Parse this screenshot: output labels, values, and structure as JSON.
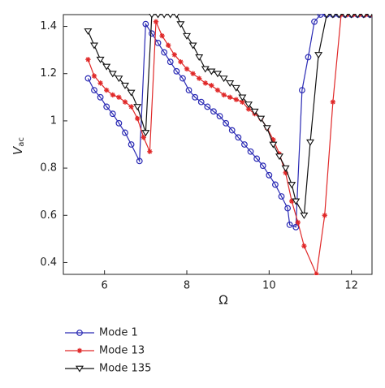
{
  "chart_data": {
    "type": "line",
    "xlabel": "Ω",
    "ylabel": "V",
    "ylabel_sub": "ac",
    "xlim": [
      5,
      12.5
    ],
    "ylim": [
      0.35,
      1.45
    ],
    "xticks": [
      6,
      8,
      10,
      12
    ],
    "yticks": [
      0.4,
      0.6,
      0.8,
      1,
      1.2,
      1.4
    ],
    "grid": false,
    "legend": "below",
    "series": [
      {
        "name": "Mode 1",
        "color": "#2a2ab4",
        "marker": "circle",
        "x": [
          5.6,
          5.75,
          5.9,
          6.05,
          6.2,
          6.35,
          6.5,
          6.65,
          6.85,
          7.0,
          7.15,
          7.3,
          7.45,
          7.6,
          7.75,
          7.9,
          8.05,
          8.2,
          8.35,
          8.5,
          8.65,
          8.8,
          8.95,
          9.1,
          9.25,
          9.4,
          9.55,
          9.7,
          9.85,
          10.0,
          10.15,
          10.3,
          10.45,
          10.5,
          10.65,
          10.8,
          10.95,
          11.1,
          11.25,
          11.4,
          11.55,
          11.7,
          11.85,
          12.0,
          12.15,
          12.3,
          12.45
        ],
        "values": [
          1.18,
          1.13,
          1.1,
          1.06,
          1.03,
          0.99,
          0.95,
          0.9,
          0.83,
          1.41,
          1.37,
          1.33,
          1.29,
          1.25,
          1.21,
          1.18,
          1.13,
          1.1,
          1.08,
          1.06,
          1.04,
          1.02,
          0.99,
          0.96,
          0.93,
          0.9,
          0.87,
          0.84,
          0.81,
          0.77,
          0.73,
          0.68,
          0.63,
          0.56,
          0.55,
          1.13,
          1.27,
          1.42,
          1.45,
          1.45,
          1.45,
          1.45,
          1.45,
          1.45,
          1.45,
          1.45,
          1.45
        ]
      },
      {
        "name": "Mode 13",
        "color": "#e02828",
        "marker": "star",
        "x": [
          5.6,
          5.75,
          5.9,
          6.05,
          6.2,
          6.35,
          6.5,
          6.65,
          6.8,
          6.95,
          7.1,
          7.25,
          7.4,
          7.55,
          7.7,
          7.85,
          8.0,
          8.15,
          8.3,
          8.45,
          8.6,
          8.75,
          8.9,
          9.05,
          9.2,
          9.35,
          9.5,
          9.65,
          9.8,
          9.95,
          10.1,
          10.25,
          10.4,
          10.55,
          10.7,
          10.85,
          11.15,
          11.35,
          11.55,
          11.75,
          11.9,
          12.05,
          12.2,
          12.35,
          12.5
        ],
        "values": [
          1.26,
          1.19,
          1.16,
          1.13,
          1.11,
          1.1,
          1.08,
          1.06,
          1.01,
          0.93,
          0.87,
          1.42,
          1.36,
          1.32,
          1.28,
          1.25,
          1.22,
          1.2,
          1.18,
          1.16,
          1.15,
          1.13,
          1.11,
          1.1,
          1.09,
          1.08,
          1.05,
          1.03,
          1.01,
          0.97,
          0.92,
          0.86,
          0.78,
          0.66,
          0.57,
          0.47,
          0.35,
          0.6,
          1.08,
          1.45,
          1.45,
          1.45,
          1.45,
          1.45,
          1.45
        ]
      },
      {
        "name": "Mode 135",
        "color": "#111111",
        "marker": "triangle-down",
        "x": [
          5.6,
          5.75,
          5.9,
          6.05,
          6.2,
          6.35,
          6.5,
          6.65,
          6.8,
          7.0,
          7.15,
          7.3,
          7.45,
          7.6,
          7.75,
          7.85,
          8.0,
          8.15,
          8.3,
          8.45,
          8.6,
          8.75,
          8.9,
          9.05,
          9.2,
          9.35,
          9.5,
          9.65,
          9.8,
          9.95,
          10.1,
          10.25,
          10.4,
          10.55,
          10.65,
          10.85,
          11.0,
          11.2,
          11.4,
          11.55,
          11.7,
          11.85,
          12.0,
          12.15,
          12.3,
          12.45
        ],
        "values": [
          1.38,
          1.32,
          1.26,
          1.23,
          1.2,
          1.18,
          1.15,
          1.12,
          1.06,
          0.95,
          1.45,
          1.45,
          1.45,
          1.45,
          1.45,
          1.41,
          1.36,
          1.32,
          1.27,
          1.22,
          1.21,
          1.2,
          1.18,
          1.16,
          1.14,
          1.1,
          1.07,
          1.04,
          1.01,
          0.97,
          0.9,
          0.85,
          0.8,
          0.73,
          0.66,
          0.6,
          0.91,
          1.28,
          1.45,
          1.45,
          1.45,
          1.45,
          1.45,
          1.45,
          1.45,
          1.45
        ]
      }
    ]
  }
}
